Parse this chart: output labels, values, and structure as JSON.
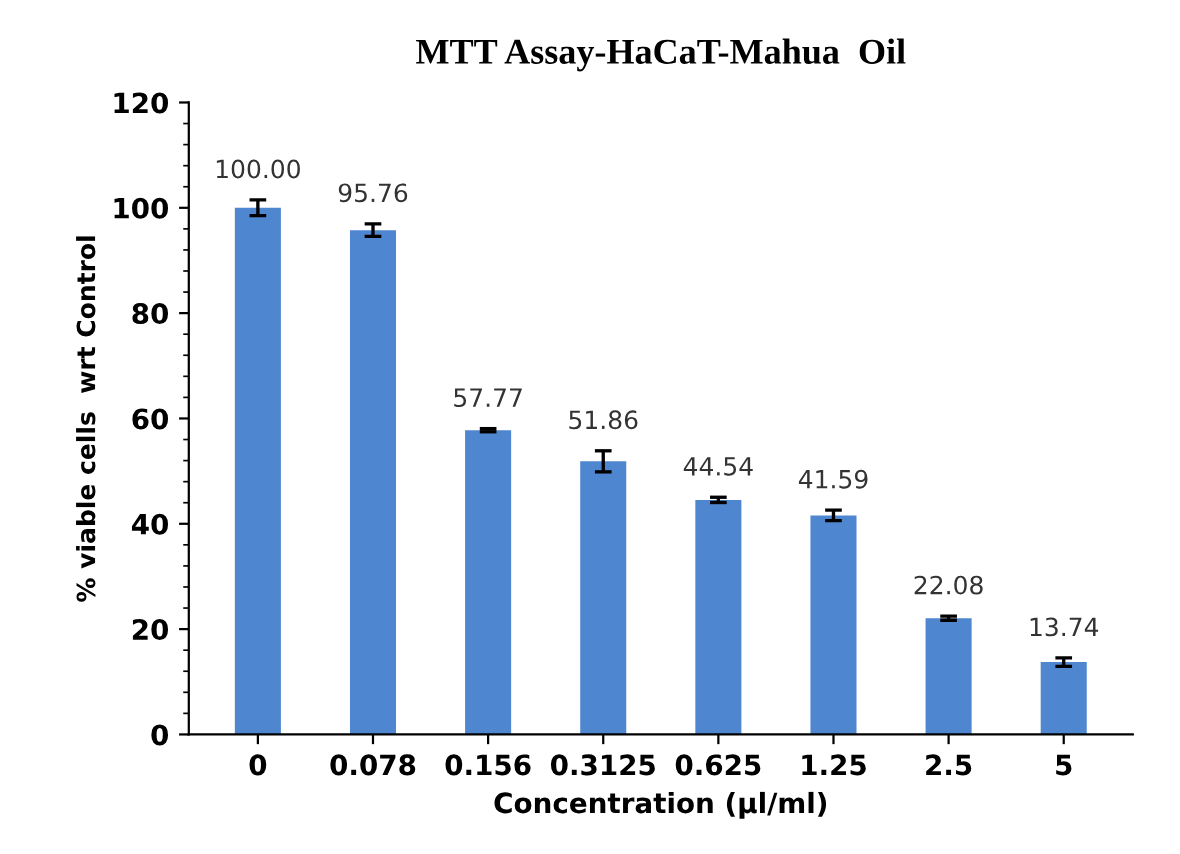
{
  "chart_data": {
    "type": "bar",
    "title": "MTT Assay-HaCaT-Mahua  Oil",
    "xlabel": "Concentration (µl/ml)",
    "ylabel": "% viable cells  wrt Control",
    "categories": [
      "0",
      "0.078",
      "0.156",
      "0.3125",
      "0.625",
      "1.25",
      "2.5",
      "5"
    ],
    "values": [
      100.0,
      95.76,
      57.77,
      51.86,
      44.54,
      41.59,
      22.08,
      13.74
    ],
    "value_labels": [
      "100.00",
      "95.76",
      "57.77",
      "51.86",
      "44.54",
      "41.59",
      "22.08",
      "13.74"
    ],
    "errors": [
      1.5,
      1.2,
      0.3,
      2,
      0.5,
      1,
      0.4,
      0.8
    ],
    "color": "#4f86d0",
    "ylim": [
      0,
      120
    ],
    "yticks": [
      0,
      20,
      40,
      60,
      80,
      100,
      120
    ],
    "grid": false,
    "legend": false
  }
}
